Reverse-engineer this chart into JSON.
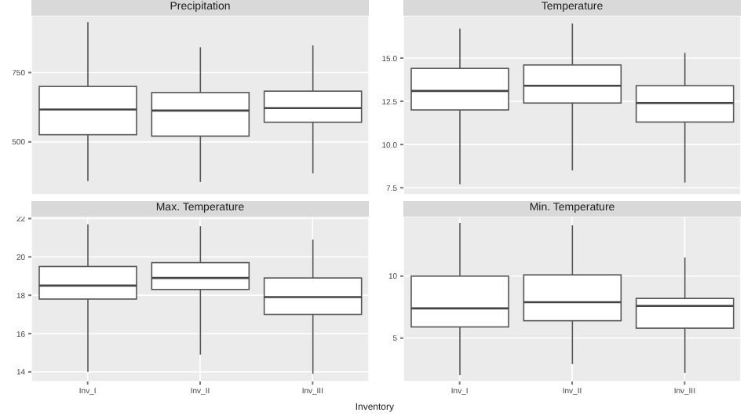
{
  "chart_data": [
    {
      "type": "box",
      "title": "Precipitation",
      "categories": [
        null,
        null,
        null
      ],
      "color": "#ffffff",
      "ylim": [
        310,
        955
      ],
      "yticks": [
        500,
        750
      ],
      "grid": true,
      "tick_labels": "y",
      "boxes": [
        {
          "low": 359,
          "q1": 526,
          "median": 617,
          "q3": 700,
          "high": 932
        },
        {
          "low": 356,
          "q1": 521,
          "median": 613,
          "q3": 678,
          "high": 841
        },
        {
          "low": 387,
          "q1": 571,
          "median": 622,
          "q3": 683,
          "high": 848
        }
      ]
    },
    {
      "type": "box",
      "title": "Temperature",
      "categories": [
        null,
        null,
        null
      ],
      "color": "#ffffff",
      "ylim": [
        7.1,
        17.45
      ],
      "yticks": [
        {
          "value": 7.5,
          "label": "7.5"
        },
        {
          "value": 10,
          "label": "10.0"
        },
        {
          "value": 12.5,
          "label": "12.5"
        },
        {
          "value": 15,
          "label": "15.0"
        }
      ],
      "grid": true,
      "tick_labels": "y",
      "boxes": [
        {
          "low": 7.7,
          "q1": 12.0,
          "median": 13.1,
          "q3": 14.4,
          "high": 16.7
        },
        {
          "low": 8.5,
          "q1": 12.4,
          "median": 13.4,
          "q3": 14.6,
          "high": 17.0
        },
        {
          "low": 7.8,
          "q1": 11.3,
          "median": 12.4,
          "q3": 13.4,
          "high": 15.3
        }
      ]
    },
    {
      "type": "box",
      "title": "Max. Temperature",
      "xlabel": "Inventory",
      "categories": [
        "Inv_I",
        "Inv_II",
        "Inv_III"
      ],
      "color": "#ffffff",
      "ylim": [
        13.5,
        22.1
      ],
      "yticks": [
        14,
        16,
        18,
        20,
        22
      ],
      "grid": true,
      "boxes": [
        {
          "low": 14.0,
          "q1": 17.8,
          "median": 18.5,
          "q3": 19.5,
          "high": 21.7
        },
        {
          "low": 14.9,
          "q1": 18.3,
          "median": 18.9,
          "q3": 19.7,
          "high": 21.6
        },
        {
          "low": 13.9,
          "q1": 17.0,
          "median": 17.9,
          "q3": 18.9,
          "high": 20.9
        }
      ]
    },
    {
      "type": "box",
      "title": "Min. Temperature",
      "categories": [
        "Inv_I",
        "Inv_II",
        "Inv_III"
      ],
      "color": "#ffffff",
      "ylim": [
        1.5,
        14.8
      ],
      "yticks": [
        5,
        10
      ],
      "grid": true,
      "boxes": [
        {
          "low": 2.0,
          "q1": 5.9,
          "median": 7.4,
          "q3": 10.0,
          "high": 14.3
        },
        {
          "low": 2.9,
          "q1": 6.4,
          "median": 7.9,
          "q3": 10.1,
          "high": 14.1
        },
        {
          "low": 2.2,
          "q1": 5.8,
          "median": 7.6,
          "q3": 8.2,
          "high": 11.5
        }
      ]
    }
  ]
}
